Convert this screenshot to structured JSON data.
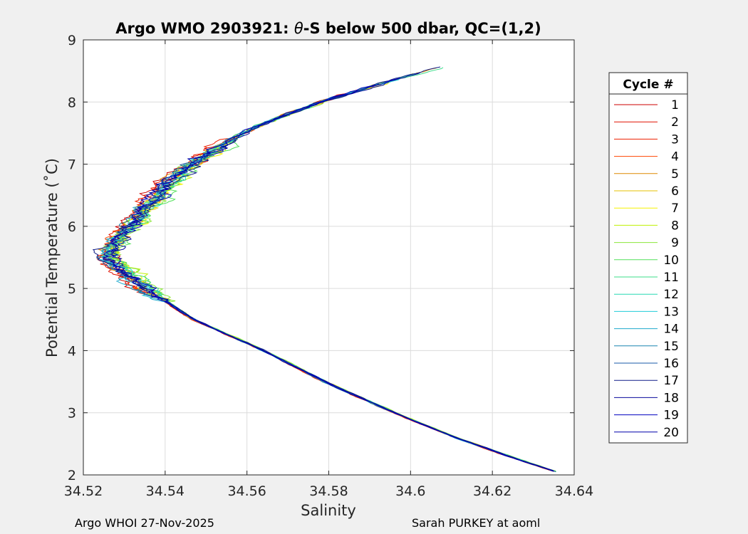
{
  "footer": {
    "left": "Argo WHOI 27-Nov-2025",
    "right": "Sarah PURKEY at aoml"
  },
  "chart_data": {
    "type": "line",
    "title_parts": [
      "Argo WMO 2903921: ",
      "θ",
      "-S below 500 dbar,  QC=(1,2)"
    ],
    "xlabel": "Salinity",
    "ylabel": "Potential Temperature (˚C)",
    "xlim": [
      34.52,
      34.64
    ],
    "ylim": [
      2,
      9
    ],
    "xticks": [
      34.52,
      34.54,
      34.56,
      34.58,
      34.6,
      34.62,
      34.64
    ],
    "xtick_labels": [
      "34.52",
      "34.54",
      "34.56",
      "34.58",
      "34.6",
      "34.62",
      "34.64"
    ],
    "yticks": [
      2,
      3,
      4,
      5,
      6,
      7,
      8,
      9
    ],
    "ytick_labels": [
      "2",
      "3",
      "4",
      "5",
      "6",
      "7",
      "8",
      "9"
    ],
    "grid": true,
    "colormap": "jet",
    "legend": {
      "title": "Cycle #",
      "placement": "outside-right",
      "entries": [
        "1",
        "2",
        "3",
        "4",
        "5",
        "6",
        "7",
        "8",
        "9",
        "10",
        "11",
        "12",
        "13",
        "14",
        "15",
        "16",
        "17",
        "18",
        "19",
        "20"
      ],
      "colors": [
        "#cc0000",
        "#e01000",
        "#ee2000",
        "#ff4500",
        "#dd8800",
        "#e6c000",
        "#f5f200",
        "#bef000",
        "#8ae63a",
        "#52e05a",
        "#3ddc8a",
        "#28d8b4",
        "#20ccd8",
        "#1eaacc",
        "#1a86b0",
        "#1a5aa8",
        "#101e88",
        "#0a0a9c",
        "#0000c0",
        "#0000aa"
      ]
    },
    "envelope": {
      "theta": [
        2.05,
        2.3,
        2.6,
        3.0,
        3.5,
        4.0,
        4.5,
        4.8,
        5.0,
        5.3,
        5.5,
        5.7,
        6.0,
        6.3,
        6.6,
        7.0,
        7.3,
        7.6,
        8.0,
        8.3,
        8.6
      ],
      "salinity": [
        34.6355,
        34.624,
        34.611,
        34.596,
        34.579,
        34.564,
        34.547,
        34.54,
        34.535,
        34.529,
        34.526,
        34.527,
        34.531,
        34.535,
        34.539,
        34.546,
        34.553,
        34.562,
        34.578,
        34.593,
        34.609
      ]
    },
    "series": [
      {
        "name": "1",
        "offset": -0.0008
      },
      {
        "name": "2",
        "offset": -0.001
      },
      {
        "name": "3",
        "offset": -0.0012
      },
      {
        "name": "4",
        "offset": -0.0005
      },
      {
        "name": "5",
        "offset": 0.0002
      },
      {
        "name": "6",
        "offset": 0.001
      },
      {
        "name": "7",
        "offset": 0.0015
      },
      {
        "name": "8",
        "offset": 0.0012
      },
      {
        "name": "9",
        "offset": 0.0018
      },
      {
        "name": "10",
        "offset": 0.0014
      },
      {
        "name": "11",
        "offset": 0.001
      },
      {
        "name": "12",
        "offset": 0.0005
      },
      {
        "name": "13",
        "offset": 0.0002
      },
      {
        "name": "14",
        "offset": -0.0002
      },
      {
        "name": "15",
        "offset": -0.0004
      },
      {
        "name": "16",
        "offset": 0.0003
      },
      {
        "name": "17",
        "offset": 0.0008
      },
      {
        "name": "18",
        "offset": 0.0006
      },
      {
        "name": "19",
        "offset": 0.0001
      },
      {
        "name": "20",
        "offset": -0.0003
      }
    ]
  }
}
